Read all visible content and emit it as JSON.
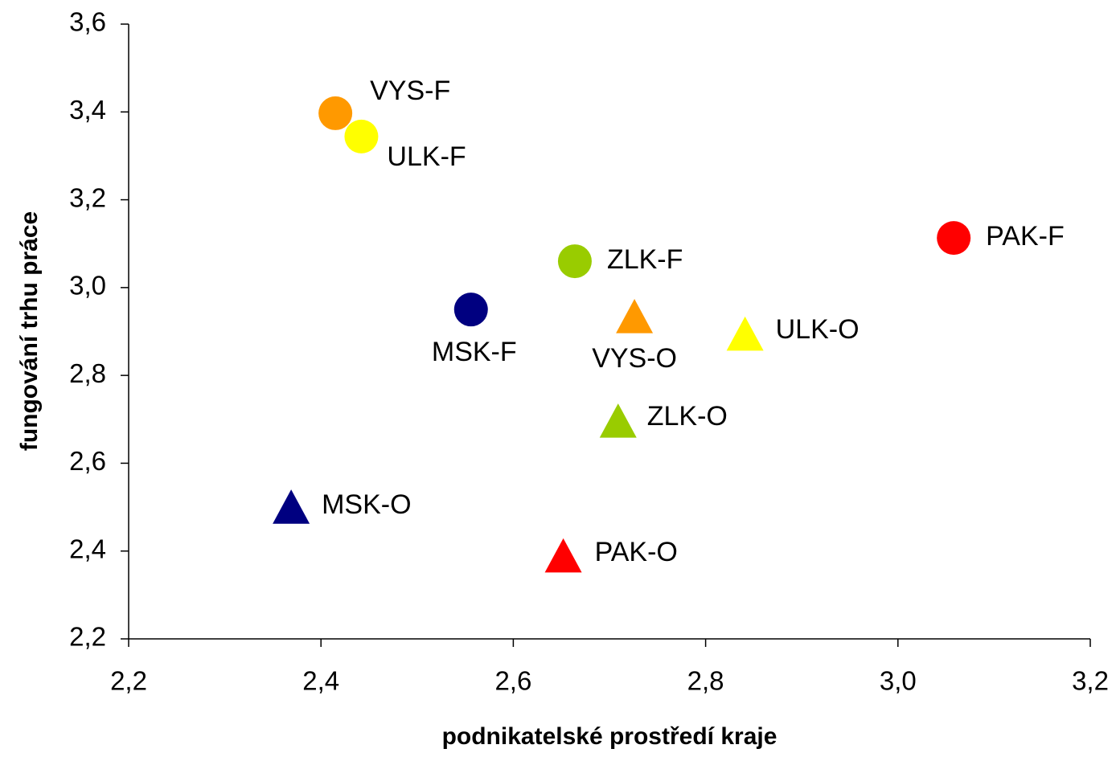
{
  "chart_data": {
    "type": "scatter",
    "x_label": "podnikatelské prostředí kraje",
    "y_label": "fungování trhu práce",
    "labels": [
      "VYS-F",
      "ULK-F",
      "PAK-F",
      "ZLK-F",
      "MSK-F",
      "VYS-O",
      "ULK-O",
      "ZLK-O",
      "MSK-O",
      "PAK-O"
    ],
    "x": [
      2.415,
      2.442,
      3.058,
      2.664,
      2.556,
      2.726,
      2.841,
      2.709,
      2.369,
      2.652
    ],
    "y": [
      3.397,
      3.344,
      3.113,
      3.06,
      2.95,
      2.932,
      2.892,
      2.694,
      2.498,
      2.387
    ],
    "markers": [
      "circle",
      "circle",
      "circle",
      "circle",
      "circle",
      "triangle",
      "triangle",
      "triangle",
      "triangle",
      "triangle"
    ],
    "colors": [
      "#ff9900",
      "#ffff00",
      "#ff0000",
      "#99cc00",
      "#000080",
      "#ff9900",
      "#ffff00",
      "#99cc00",
      "#000080",
      "#ff0000"
    ],
    "xlim": [
      2.2,
      3.2
    ],
    "xticks": [
      {
        "value": 2.2,
        "label": "2,2"
      },
      {
        "value": 2.4,
        "label": "2,4"
      },
      {
        "value": 2.6,
        "label": "2,6"
      },
      {
        "value": 2.8,
        "label": "2,8"
      },
      {
        "value": 3.0,
        "label": "3,0"
      },
      {
        "value": 3.2,
        "label": "3,2"
      }
    ],
    "ylim": [
      2.2,
      3.6
    ],
    "yticks": [
      {
        "value": 2.2,
        "label": "2,2"
      },
      {
        "value": 2.4,
        "label": "2,4"
      },
      {
        "value": 2.6,
        "label": "2,6"
      },
      {
        "value": 2.8,
        "label": "2,8"
      },
      {
        "value": 3.0,
        "label": "3,0"
      },
      {
        "value": 3.2,
        "label": "3,2"
      },
      {
        "value": 3.4,
        "label": "3,4"
      },
      {
        "value": 3.6,
        "label": "3,6"
      }
    ],
    "grid": false
  }
}
